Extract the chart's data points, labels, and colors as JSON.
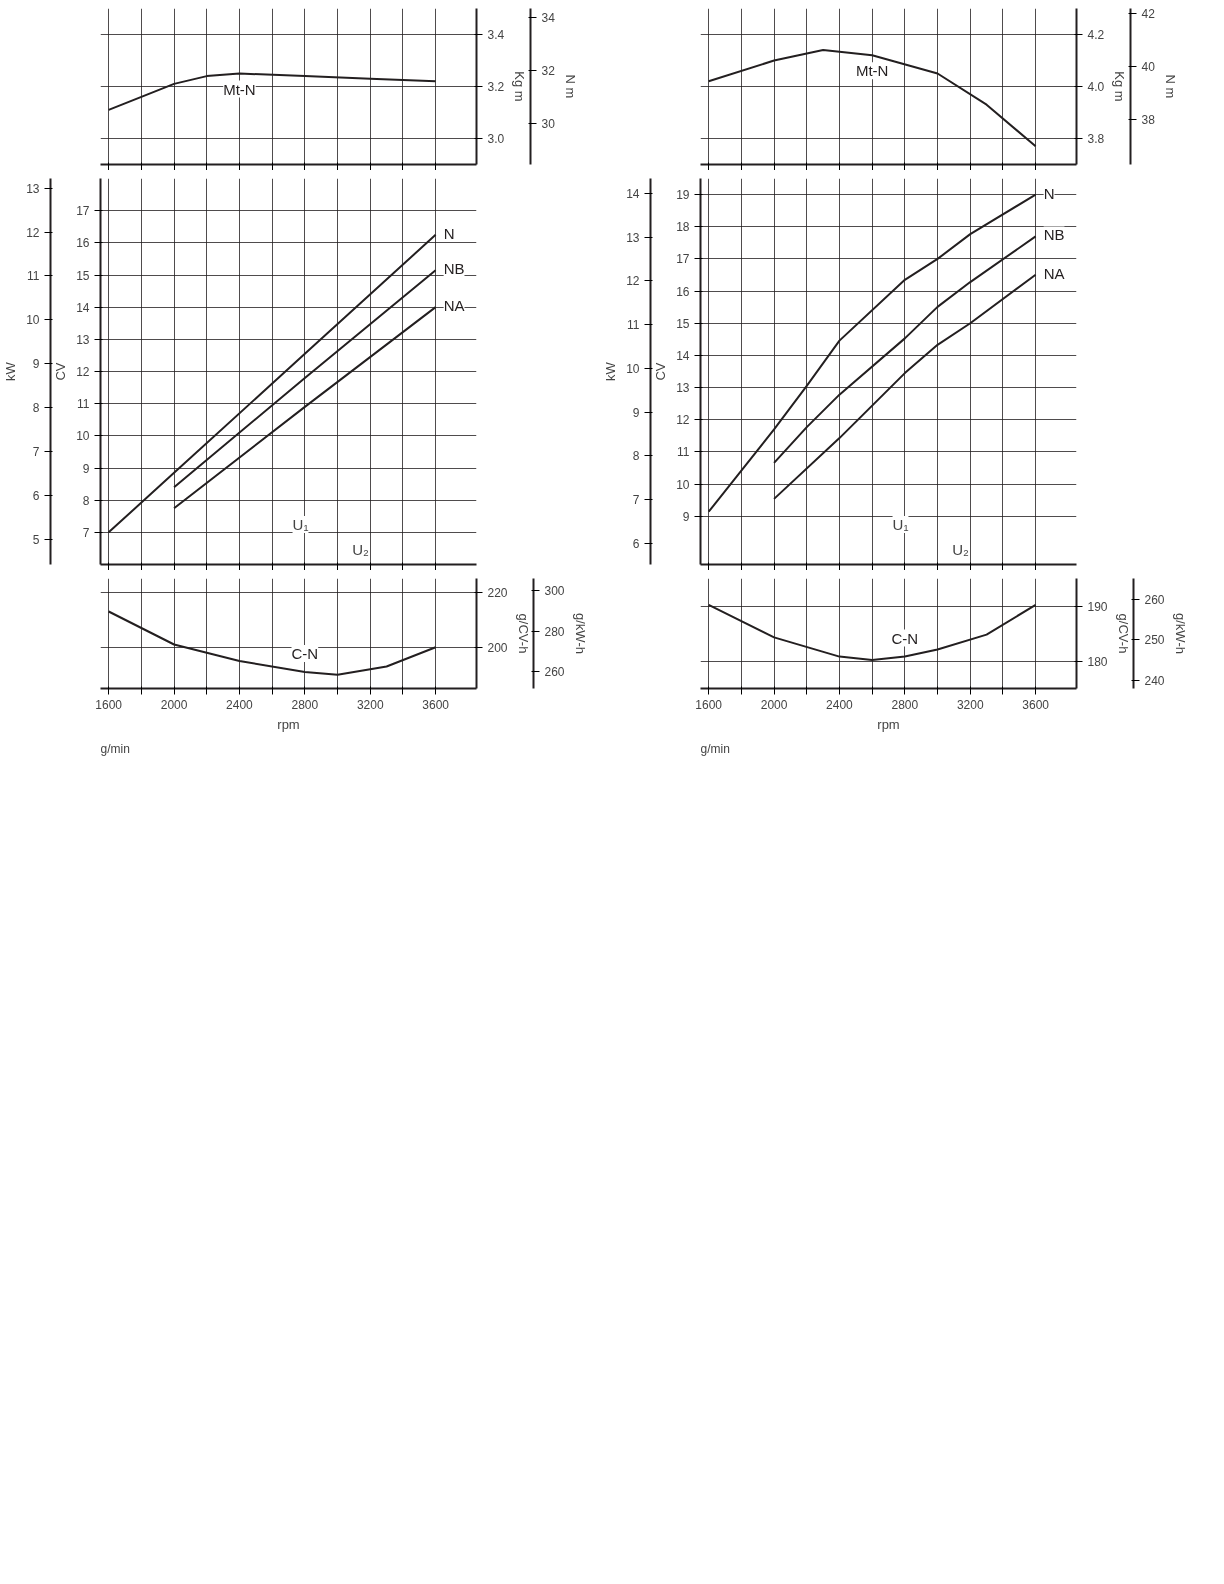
{
  "chart_data": [
    {
      "type": "line",
      "ylabel": "Kg m",
      "y2label": "N m",
      "tick_labels": "y",
      "xlim": [
        1550,
        3850
      ],
      "xticks": [
        {
          "value": 1600,
          "label": null
        },
        {
          "value": 1800,
          "label": null
        },
        {
          "value": 2000,
          "label": null
        },
        {
          "value": 2200,
          "label": null
        },
        {
          "value": 2400,
          "label": null
        },
        {
          "value": 2600,
          "label": null
        },
        {
          "value": 2800,
          "label": null
        },
        {
          "value": 3000,
          "label": null
        },
        {
          "value": 3200,
          "label": null
        },
        {
          "value": 3400,
          "label": null
        },
        {
          "value": 3600,
          "label": null
        }
      ],
      "ylim": [
        2.9,
        3.5
      ],
      "yticks": [
        {
          "value": 3.0,
          "label": "3.0"
        },
        3.2,
        3.4
      ],
      "y2lim": [
        28.45,
        34.34
      ],
      "y2ticks": [
        30,
        32,
        34
      ],
      "grid": true,
      "marker": "none",
      "line_style": "solid",
      "series": [
        {
          "name": "Mt-N",
          "color": "#231f20",
          "x": [
            1600,
            2000,
            2200,
            2400,
            2800,
            3200,
            3600
          ],
          "values": [
            3.11,
            3.21,
            3.24,
            3.25,
            3.24,
            3.23,
            3.22
          ]
        }
      ]
    },
    {
      "type": "line",
      "ylabel": "CV",
      "y2label": "kW",
      "tick_labels": "y",
      "annotations": [
        "U₁",
        "U₂"
      ],
      "xlim": [
        1550,
        3850
      ],
      "xticks": [
        {
          "value": 1600,
          "label": null
        },
        {
          "value": 1800,
          "label": null
        },
        {
          "value": 2000,
          "label": null
        },
        {
          "value": 2200,
          "label": null
        },
        {
          "value": 2400,
          "label": null
        },
        {
          "value": 2600,
          "label": null
        },
        {
          "value": 2800,
          "label": null
        },
        {
          "value": 3000,
          "label": null
        },
        {
          "value": 3200,
          "label": null
        },
        {
          "value": 3400,
          "label": null
        },
        {
          "value": 3600,
          "label": null
        }
      ],
      "ylim": [
        6,
        18
      ],
      "yticks": [
        7,
        8,
        9,
        10,
        11,
        12,
        13,
        14,
        15,
        16,
        17
      ],
      "y2lim": [
        4.43,
        13.22
      ],
      "y2ticks": [
        5,
        6,
        7,
        8,
        9,
        10,
        11,
        12,
        13
      ],
      "grid": true,
      "marker": "none",
      "line_style": "solid",
      "series": [
        {
          "name": "N",
          "color": "#231f20",
          "x": [
            1600,
            2000,
            2800,
            3600
          ],
          "values": [
            7.0,
            8.85,
            12.55,
            16.25
          ]
        },
        {
          "name": "NB",
          "color": "#231f20",
          "x": [
            2000,
            2800,
            3600
          ],
          "values": [
            8.4,
            11.8,
            15.15
          ]
        },
        {
          "name": "NA",
          "color": "#231f20",
          "x": [
            2000,
            2800,
            3600
          ],
          "values": [
            7.75,
            10.9,
            14.0
          ]
        }
      ]
    },
    {
      "type": "line",
      "xlabel": "rpm",
      "ylabel": "g/CV-h",
      "y2label": "g/kW-h",
      "annotations": [
        "g/min"
      ],
      "xlim": [
        1550,
        3850
      ],
      "xticks": [
        1600,
        {
          "value": 1800,
          "label": null
        },
        2000,
        {
          "value": 2200,
          "label": null
        },
        2400,
        {
          "value": 2600,
          "label": null
        },
        2800,
        {
          "value": 3000,
          "label": null
        },
        3200,
        {
          "value": 3400,
          "label": null
        },
        3600
      ],
      "ylim": [
        185,
        225
      ],
      "yticks": [
        200,
        220
      ],
      "y2lim": [
        251.6,
        306
      ],
      "y2ticks": [
        260,
        280,
        300
      ],
      "grid": true,
      "marker": "none",
      "line_style": "solid",
      "series": [
        {
          "name": "C-N",
          "color": "#231f20",
          "x": [
            1600,
            2000,
            2400,
            2800,
            3000,
            3300,
            3600
          ],
          "values": [
            213,
            201,
            195,
            191,
            190,
            193,
            200
          ]
        }
      ]
    },
    {
      "type": "line",
      "ylabel": "Kg m",
      "y2label": "N m",
      "tick_labels": "y",
      "xlim": [
        1550,
        3850
      ],
      "xticks": [
        {
          "value": 1600,
          "label": null
        },
        {
          "value": 1800,
          "label": null
        },
        {
          "value": 2000,
          "label": null
        },
        {
          "value": 2200,
          "label": null
        },
        {
          "value": 2400,
          "label": null
        },
        {
          "value": 2600,
          "label": null
        },
        {
          "value": 2800,
          "label": null
        },
        {
          "value": 3000,
          "label": null
        },
        {
          "value": 3200,
          "label": null
        },
        {
          "value": 3400,
          "label": null
        },
        {
          "value": 3600,
          "label": null
        }
      ],
      "ylim": [
        3.7,
        4.3
      ],
      "yticks": [
        3.8,
        {
          "value": 4.0,
          "label": "4.0"
        },
        4.2
      ],
      "y2lim": [
        36.3,
        42.18
      ],
      "y2ticks": [
        38,
        40,
        42
      ],
      "grid": true,
      "marker": "none",
      "line_style": "solid",
      "series": [
        {
          "name": "Mt-N",
          "color": "#231f20",
          "x": [
            1600,
            2000,
            2300,
            2600,
            3000,
            3300,
            3600
          ],
          "values": [
            4.02,
            4.1,
            4.14,
            4.12,
            4.05,
            3.93,
            3.77
          ]
        }
      ]
    },
    {
      "type": "line",
      "ylabel": "CV",
      "y2label": "kW",
      "tick_labels": "y",
      "annotations": [
        "U₁",
        "U₂"
      ],
      "xlim": [
        1550,
        3850
      ],
      "xticks": [
        {
          "value": 1600,
          "label": null
        },
        {
          "value": 1800,
          "label": null
        },
        {
          "value": 2000,
          "label": null
        },
        {
          "value": 2200,
          "label": null
        },
        {
          "value": 2400,
          "label": null
        },
        {
          "value": 2600,
          "label": null
        },
        {
          "value": 2800,
          "label": null
        },
        {
          "value": 3000,
          "label": null
        },
        {
          "value": 3200,
          "label": null
        },
        {
          "value": 3400,
          "label": null
        },
        {
          "value": 3600,
          "label": null
        }
      ],
      "ylim": [
        7.5,
        19.5
      ],
      "yticks": [
        9,
        10,
        11,
        12,
        13,
        14,
        15,
        16,
        17,
        18,
        19
      ],
      "y2lim": [
        5.52,
        14.34
      ],
      "y2ticks": [
        6,
        7,
        8,
        9,
        10,
        11,
        12,
        13,
        14
      ],
      "grid": true,
      "marker": "none",
      "line_style": "solid",
      "series": [
        {
          "name": "N",
          "color": "#231f20",
          "x": [
            1600,
            2000,
            2200,
            2400,
            2800,
            3000,
            3200,
            3600
          ],
          "values": [
            9.14,
            11.7,
            13.05,
            14.46,
            16.35,
            17.0,
            17.77,
            19.0
          ]
        },
        {
          "name": "NB",
          "color": "#231f20",
          "x": [
            2000,
            2200,
            2400,
            2800,
            3000,
            3200,
            3600
          ],
          "values": [
            10.66,
            11.77,
            12.78,
            14.53,
            15.51,
            16.28,
            17.7
          ]
        },
        {
          "name": "NA",
          "color": "#231f20",
          "x": [
            2000,
            2400,
            2800,
            3000,
            3200,
            3600
          ],
          "values": [
            9.54,
            11.43,
            13.45,
            14.33,
            15.0,
            16.51
          ]
        }
      ]
    },
    {
      "type": "line",
      "xlabel": "rpm",
      "ylabel": "g/CV-h",
      "y2label": "g/kW-h",
      "annotations": [
        "g/min"
      ],
      "xlim": [
        1550,
        3850
      ],
      "xticks": [
        1600,
        {
          "value": 1800,
          "label": null
        },
        2000,
        {
          "value": 2200,
          "label": null
        },
        2400,
        {
          "value": 2600,
          "label": null
        },
        2800,
        {
          "value": 3000,
          "label": null
        },
        3200,
        {
          "value": 3400,
          "label": null
        },
        3600
      ],
      "ylim": [
        175,
        195
      ],
      "yticks": [
        180,
        190
      ],
      "y2lim": [
        238,
        265.2
      ],
      "y2ticks": [
        240,
        250,
        260
      ],
      "grid": true,
      "marker": "none",
      "line_style": "solid",
      "series": [
        {
          "name": "C-N",
          "color": "#231f20",
          "x": [
            1600,
            2000,
            2400,
            2600,
            2800,
            3000,
            3300,
            3600
          ],
          "values": [
            190.2,
            184.3,
            180.8,
            180.2,
            180.8,
            182.1,
            184.8,
            190.2
          ]
        }
      ]
    }
  ]
}
